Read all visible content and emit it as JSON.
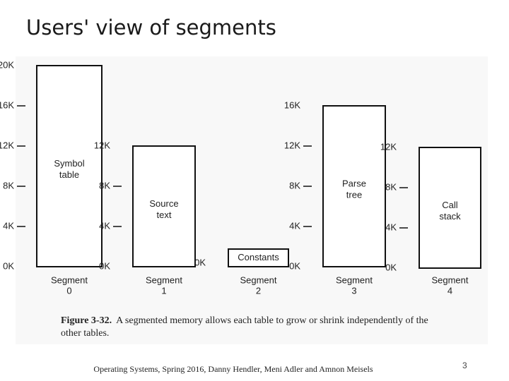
{
  "title": "Users' view of segments",
  "segments": [
    {
      "ticks": [
        "0K",
        "4K",
        "8K",
        "12K",
        "16K",
        "20K"
      ],
      "content": [
        "Symbol",
        "table"
      ],
      "label": "Segment",
      "number": "0"
    },
    {
      "ticks": [
        "0K",
        "4K",
        "8K",
        "12K"
      ],
      "content": [
        "Source",
        "text"
      ],
      "label": "Segment",
      "number": "1"
    },
    {
      "ticks": [
        "0K"
      ],
      "content": [
        "Constants"
      ],
      "label": "Segment",
      "number": "2"
    },
    {
      "ticks": [
        "0K",
        "4K",
        "8K",
        "12K",
        "16K"
      ],
      "content": [
        "Parse",
        "tree"
      ],
      "label": "Segment",
      "number": "3"
    },
    {
      "ticks": [
        "0K",
        "4K",
        "8K",
        "12K"
      ],
      "content": [
        "Call",
        "stack"
      ],
      "label": "Segment",
      "number": "4"
    }
  ],
  "caption": {
    "label": "Figure 3-32.",
    "text": "A segmented memory allows each table to grow or shrink independently of the other tables."
  },
  "footer": "Operating Systems, Spring 2016, Danny Hendler, Meni Adler and Amnon Meisels",
  "page_number": "3"
}
